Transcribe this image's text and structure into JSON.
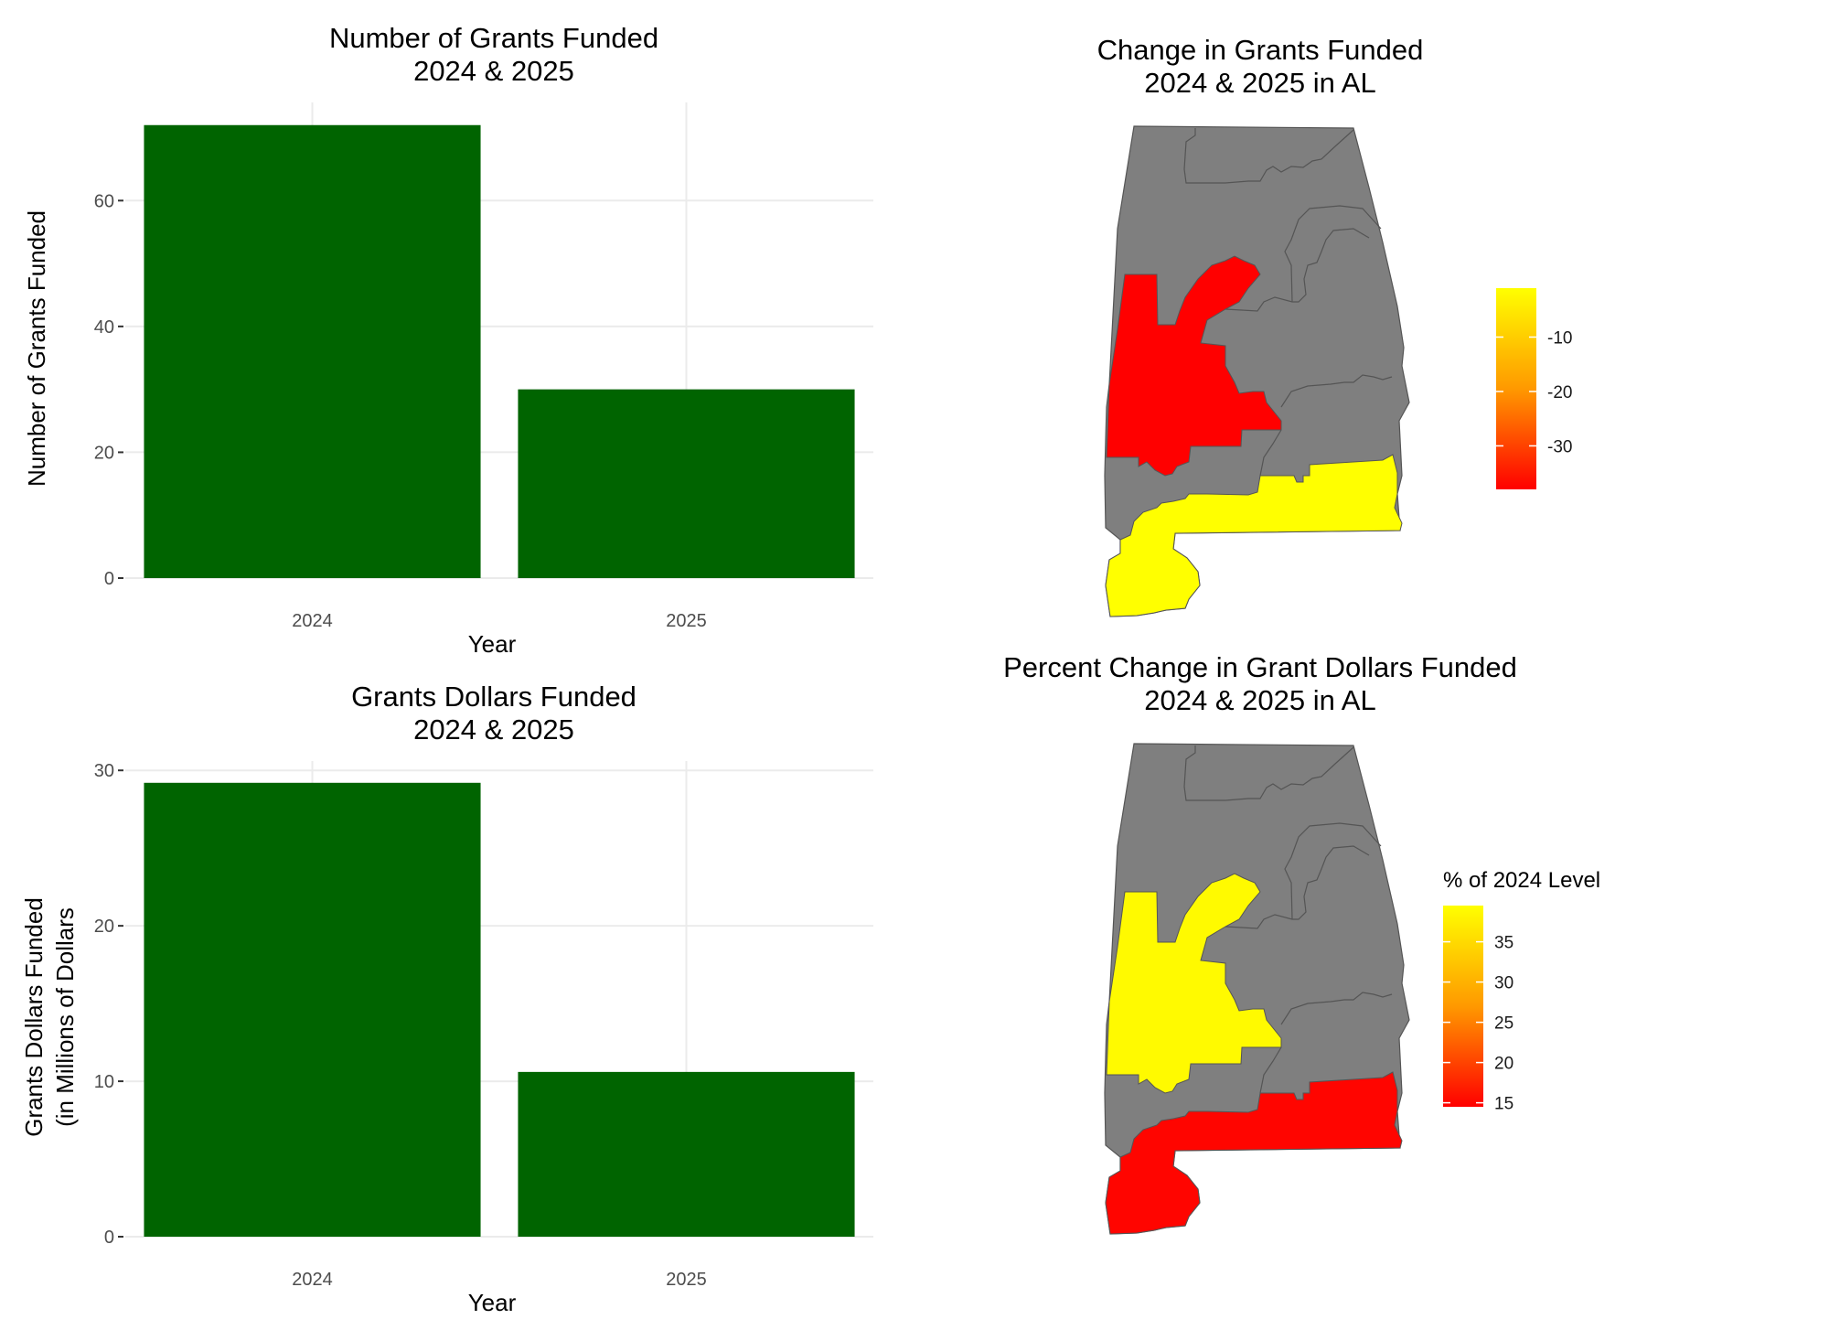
{
  "colors": {
    "bar_fill": "#006400",
    "map_default": "#7f7f7f",
    "low": "#ff0000",
    "high": "#ffff00",
    "grid": "#ebebeb"
  },
  "chart_data": [
    {
      "type": "bar",
      "title": [
        "Number of Grants Funded",
        "2024 & 2025"
      ],
      "xlabel": "Year",
      "ylabel": [
        "Number of Grants Funded"
      ],
      "categories": [
        "2024",
        "2025"
      ],
      "values": [
        72,
        30
      ],
      "ylim": [
        0,
        75.6
      ],
      "yticks": [
        0,
        20,
        40,
        60
      ],
      "ytick_labels": [
        "0",
        "20",
        "40",
        "60"
      ],
      "grid": true,
      "legend": "none"
    },
    {
      "type": "bar",
      "title": [
        "Grants Dollars Funded",
        "2024 & 2025"
      ],
      "xlabel": "Year",
      "ylabel": [
        "Grants Dollars Funded",
        "(in Millions of Dollars"
      ],
      "categories": [
        "2024",
        "2025"
      ],
      "values": [
        29.2,
        10.6
      ],
      "ylim": [
        0,
        30.6
      ],
      "yticks": [
        0,
        10,
        20,
        30
      ],
      "ytick_labels": [
        "0",
        "10",
        "20",
        "30"
      ],
      "grid": true,
      "legend": "none"
    },
    {
      "type": "map",
      "title": [
        "Change in Grants Funded",
        "2024 & 2025 in AL"
      ],
      "regions": [
        {
          "region": "west-central",
          "value": -38
        },
        {
          "region": "south",
          "value": -1
        }
      ],
      "legend": {
        "title": "",
        "position": "right",
        "ticks": [
          -10,
          -20,
          -30
        ],
        "tick_labels": [
          "-10",
          "-20",
          "-30"
        ],
        "range": [
          -38,
          -1
        ],
        "low_color": "#ff0000",
        "high_color": "#ffff00"
      }
    },
    {
      "type": "map",
      "title": [
        "Percent Change in Grant Dollars Funded",
        "2024 & 2025 in AL"
      ],
      "regions": [
        {
          "region": "west-central",
          "value": 39
        },
        {
          "region": "south",
          "value": 15
        }
      ],
      "legend": {
        "title": "% of 2024 Level",
        "position": "right",
        "ticks": [
          35,
          30,
          25,
          20,
          15
        ],
        "tick_labels": [
          "35",
          "30",
          "25",
          "20",
          "15"
        ],
        "range": [
          14.5,
          39.5
        ],
        "low_color": "#ff0000",
        "high_color": "#ffff00"
      }
    }
  ]
}
